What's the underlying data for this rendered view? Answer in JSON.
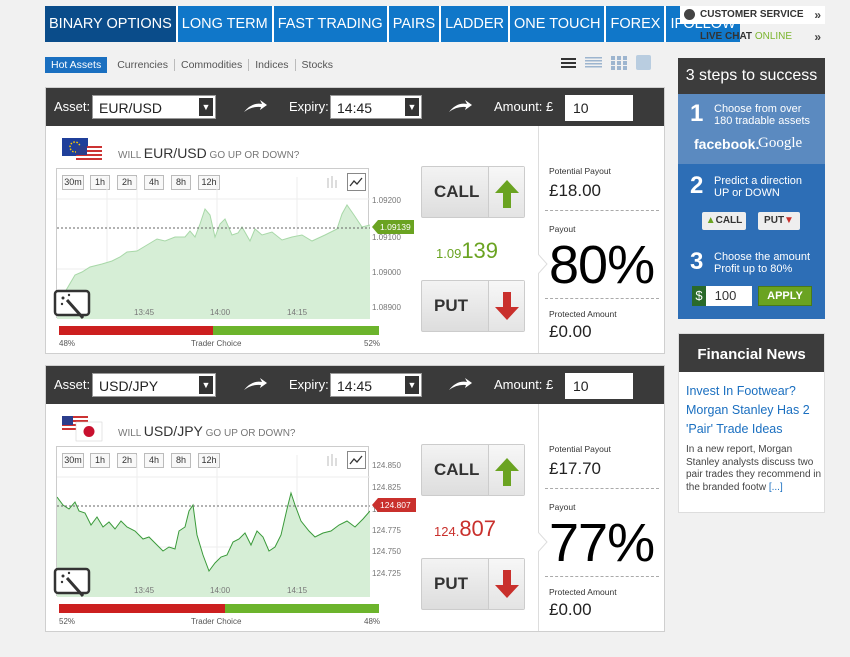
{
  "nav": {
    "tabs": [
      "BINARY OPTIONS",
      "LONG TERM",
      "FAST TRADING",
      "PAIRS",
      "LADDER",
      "ONE TOUCH",
      "FOREX",
      "IFOLLOW"
    ],
    "active": 0
  },
  "subtabs": [
    "Hot Assets",
    "Currencies",
    "Commodities",
    "Indices",
    "Stocks"
  ],
  "sidebar": {
    "customer_service": "CUSTOMER SERVICE",
    "live_chat": "LIVE CHAT",
    "online": "ONLINE",
    "steps_title": "3 steps to success",
    "step1_num": "1",
    "step1_text": "Choose from over 180 tradable assets",
    "facebook": "facebook.",
    "google": "Google",
    "step2_num": "2",
    "step2_text": "Predict a direction UP or DOWN",
    "step2_call": "CALL",
    "step2_put": "PUT",
    "step3_num": "3",
    "step3_text": "Choose the amount Profit up to 80%",
    "step3_currency": "$",
    "step3_amount": "100",
    "step3_apply": "APPLY",
    "news_title": "Financial News",
    "news_headline": "Invest In Footwear? Morgan Stanley Has 2 'Pair' Trade Ideas",
    "news_body": "In a new report, Morgan Stanley analysts discuss two pair trades they recommend in the branded footw",
    "news_more": "[...]"
  },
  "panels": [
    {
      "asset_label": "Asset:",
      "asset": "EUR/USD",
      "expiry_label": "Expiry:",
      "expiry": "14:45",
      "amount_label": "Amount: £",
      "amount": "10",
      "question_pre": "WILL",
      "question_asset": "EUR/USD",
      "question_post": "GO UP OR DOWN?",
      "timeframes": [
        "30m",
        "1h",
        "2h",
        "4h",
        "8h",
        "12h"
      ],
      "y_ticks": [
        "1.09200",
        "1.09100",
        "1.09000",
        "1.08900"
      ],
      "x_ticks": [
        "13:45",
        "14:00",
        "14:15"
      ],
      "current_tag": "1.09139",
      "price_small": "1.09",
      "price_big": "139",
      "price_color": "#6aa321",
      "trader_choice": "Trader Choice",
      "left_pct": "48%",
      "right_pct": "52%",
      "left_frac": 0.48,
      "call": "CALL",
      "put": "PUT",
      "potential_label": "Potential Payout",
      "potential": "£18.00",
      "payout_label": "Payout",
      "payout": "80%",
      "protected_label": "Protected Amount",
      "protected": "£0.00"
    },
    {
      "asset_label": "Asset:",
      "asset": "USD/JPY",
      "expiry_label": "Expiry:",
      "expiry": "14:45",
      "amount_label": "Amount: £",
      "amount": "10",
      "question_pre": "WILL",
      "question_asset": "USD/JPY",
      "question_post": "GO UP OR DOWN?",
      "timeframes": [
        "30m",
        "1h",
        "2h",
        "4h",
        "8h",
        "12h"
      ],
      "y_ticks": [
        "124.850",
        "124.825",
        "124.800",
        "124.775",
        "124.750",
        "124.725"
      ],
      "x_ticks": [
        "13:45",
        "14:00",
        "14:15"
      ],
      "current_tag": "124.807",
      "price_small": "124.",
      "price_big": "807",
      "price_color": "#c9302c",
      "trader_choice": "Trader Choice",
      "left_pct": "52%",
      "right_pct": "48%",
      "left_frac": 0.52,
      "call": "CALL",
      "put": "PUT",
      "potential_label": "Potential Payout",
      "potential": "£17.70",
      "payout_label": "Payout",
      "payout": "77%",
      "protected_label": "Protected Amount",
      "protected": "£0.00"
    }
  ],
  "colors": {
    "nav": "#1077c9",
    "call_green": "#6aa321",
    "put_red": "#c9302c"
  }
}
